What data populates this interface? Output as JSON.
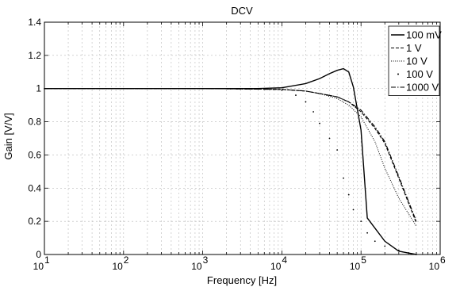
{
  "chart_data": {
    "type": "line",
    "title": "DCV",
    "xlabel": "Frequency [Hz]",
    "ylabel": "Gain [V/V]",
    "xscale": "log",
    "xlim": [
      10,
      1000000
    ],
    "ylim": [
      0,
      1.4
    ],
    "grid": true,
    "legend_position": "top-right",
    "x_ticks": [
      {
        "value": 10,
        "base": "10",
        "exp": "1"
      },
      {
        "value": 100,
        "base": "10",
        "exp": "2"
      },
      {
        "value": 1000,
        "base": "10",
        "exp": "3"
      },
      {
        "value": 10000,
        "base": "10",
        "exp": "4"
      },
      {
        "value": 100000,
        "base": "10",
        "exp": "5"
      },
      {
        "value": 1000000,
        "base": "10",
        "exp": "6"
      }
    ],
    "y_ticks": [
      {
        "value": 0,
        "label": "0"
      },
      {
        "value": 0.2,
        "label": "0.2"
      },
      {
        "value": 0.4,
        "label": "0.4"
      },
      {
        "value": 0.6,
        "label": "0.6"
      },
      {
        "value": 0.8,
        "label": "0.8"
      },
      {
        "value": 1.0,
        "label": "1"
      },
      {
        "value": 1.2,
        "label": "1.2"
      },
      {
        "value": 1.4,
        "label": "1.4"
      }
    ],
    "series": [
      {
        "name": "100 mV",
        "style": "solid",
        "points": [
          [
            10,
            1.0
          ],
          [
            1000,
            1.0
          ],
          [
            5000,
            1.0
          ],
          [
            10000,
            1.005
          ],
          [
            20000,
            1.03
          ],
          [
            30000,
            1.06
          ],
          [
            40000,
            1.09
          ],
          [
            50000,
            1.11
          ],
          [
            60000,
            1.12
          ],
          [
            70000,
            1.1
          ],
          [
            80000,
            1.01
          ],
          [
            100000,
            0.75
          ],
          [
            120000,
            0.22
          ],
          [
            200000,
            0.08
          ],
          [
            300000,
            0.02
          ],
          [
            500000,
            0.0
          ]
        ]
      },
      {
        "name": "1 V",
        "style": "dashed",
        "points": [
          [
            10,
            1.0
          ],
          [
            1000,
            1.0
          ],
          [
            10000,
            0.995
          ],
          [
            20000,
            0.985
          ],
          [
            30000,
            0.97
          ],
          [
            50000,
            0.95
          ],
          [
            70000,
            0.92
          ],
          [
            100000,
            0.86
          ],
          [
            150000,
            0.76
          ],
          [
            200000,
            0.67
          ],
          [
            300000,
            0.46
          ],
          [
            500000,
            0.19
          ]
        ]
      },
      {
        "name": "10 V",
        "style": "dotted",
        "points": [
          [
            10,
            1.0
          ],
          [
            1000,
            1.0
          ],
          [
            10000,
            0.995
          ],
          [
            20000,
            0.985
          ],
          [
            30000,
            0.97
          ],
          [
            50000,
            0.94
          ],
          [
            70000,
            0.9
          ],
          [
            100000,
            0.83
          ],
          [
            150000,
            0.68
          ],
          [
            200000,
            0.52
          ],
          [
            300000,
            0.34
          ],
          [
            500000,
            0.17
          ]
        ]
      },
      {
        "name": "100 V",
        "style": "points",
        "points": [
          [
            10,
            1.0
          ],
          [
            100,
            1.0
          ],
          [
            1000,
            1.0
          ],
          [
            5000,
            1.0
          ],
          [
            10000,
            0.99
          ],
          [
            15000,
            0.96
          ],
          [
            20000,
            0.92
          ],
          [
            25000,
            0.86
          ],
          [
            30000,
            0.79
          ],
          [
            40000,
            0.7
          ],
          [
            50000,
            0.63
          ],
          [
            60000,
            0.46
          ],
          [
            70000,
            0.36
          ],
          [
            80000,
            0.27
          ],
          [
            100000,
            0.2
          ],
          [
            120000,
            0.13
          ],
          [
            150000,
            0.08
          ],
          [
            200000,
            0.05
          ],
          [
            300000,
            0.025
          ],
          [
            500000,
            0.0
          ]
        ]
      },
      {
        "name": "1000 V",
        "style": "dashdot",
        "points": [
          [
            10,
            1.0
          ],
          [
            1000,
            1.0
          ],
          [
            10000,
            0.995
          ],
          [
            20000,
            0.985
          ],
          [
            30000,
            0.97
          ],
          [
            50000,
            0.95
          ],
          [
            70000,
            0.92
          ],
          [
            100000,
            0.87
          ],
          [
            150000,
            0.77
          ],
          [
            200000,
            0.68
          ],
          [
            300000,
            0.47
          ],
          [
            500000,
            0.2
          ]
        ]
      }
    ]
  }
}
